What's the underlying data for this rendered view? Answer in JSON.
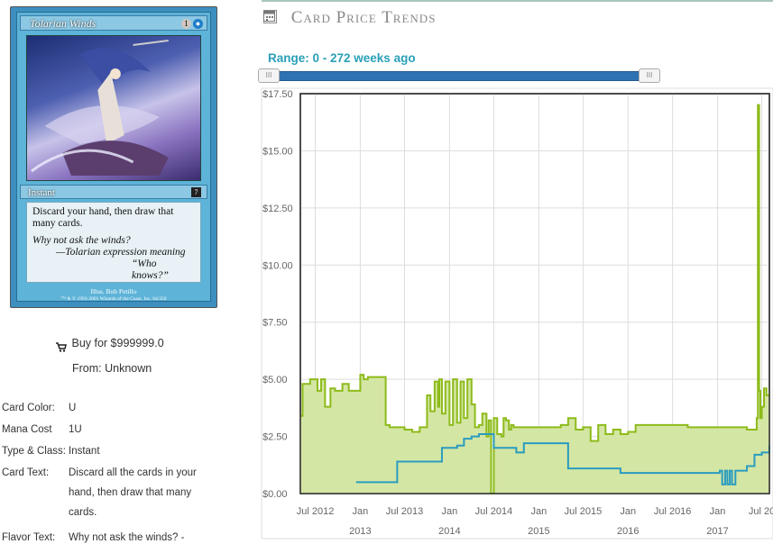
{
  "card_image": {
    "title": "Tolarian Winds",
    "mana": [
      "1",
      "●"
    ],
    "type_line": "Instant",
    "set_symbol": "7",
    "rules_text": "Discard your hand, then draw that many cards.",
    "flavor_line1": "Why not ask the winds?",
    "flavor_line2": "—Tolarian expression meaning",
    "flavor_line3": "“Who knows?”",
    "illus": "Illus. Bob Petillo",
    "copyright": "™ & © 1993-2001 Wizards of the Coast, Inc. 64/350"
  },
  "buy": {
    "label": "Buy for $999999.0",
    "icon": "cart-icon"
  },
  "from": "From: Unknown",
  "details": [
    {
      "key": "Card Color:",
      "value": "U"
    },
    {
      "key": "Mana Cost",
      "value": "1U"
    },
    {
      "key": "Type & Class:",
      "value": "Instant"
    },
    {
      "key": "Card Text:",
      "value": "Discard all the cards in your hand, then draw that many cards."
    },
    {
      "key": "Flavor Text:",
      "value": "Why not ask the winds? -"
    }
  ],
  "header": {
    "title": "Card Price Trends",
    "icon": "calendar-icon"
  },
  "range": {
    "label": "Range: 0 - 272 weeks ago",
    "handle_left": "III",
    "handle_right": "III"
  },
  "colors": {
    "green_line": "#8dbb1a",
    "green_fill": "#d4e6a4",
    "blue_line": "#2a9cc0",
    "accent": "#2aa0b8"
  },
  "chart_data": {
    "type": "area",
    "xlabel": "",
    "ylabel": "",
    "ylim": [
      0,
      17.5
    ],
    "xlim": [
      "2012-05-01",
      "2017-08-01"
    ],
    "y_ticks": [
      "$0.00",
      "$2.50",
      "$5.00",
      "$7.50",
      "$10.00",
      "$12.50",
      "$15.00",
      "$17.50"
    ],
    "x_ticks_top": [
      "Jul 2012",
      "Jan",
      "Jul 2013",
      "Jan",
      "Jul 2014",
      "Jan",
      "Jul 2015",
      "Jan",
      "Jul 2016",
      "Jan",
      "Jul 20"
    ],
    "x_ticks_bottom": [
      "2013",
      "2014",
      "2015",
      "2016",
      "2017"
    ],
    "grid": true,
    "series": [
      {
        "x": [
          "2012-05-01",
          "2012-05-10",
          "2012-06-10",
          "2012-07-10",
          "2012-07-25",
          "2012-08-10",
          "2012-09-01",
          "2012-09-20",
          "2012-10-20",
          "2012-11-15",
          "2012-12-15",
          "2013-01-01",
          "2013-01-15",
          "2013-02-01",
          "2013-03-15",
          "2013-04-15",
          "2013-05-01",
          "2013-05-15",
          "2013-06-01",
          "2013-06-20",
          "2013-07-01",
          "2013-08-01",
          "2013-09-01",
          "2013-10-01",
          "2013-10-15",
          "2013-11-01",
          "2013-11-15",
          "2013-11-20",
          "2013-12-01",
          "2013-12-15",
          "2014-01-01",
          "2014-01-15",
          "2014-02-01",
          "2014-02-15",
          "2014-03-01",
          "2014-03-15",
          "2014-04-01",
          "2014-04-15",
          "2014-05-01",
          "2014-05-15",
          "2014-06-01",
          "2014-06-10",
          "2014-06-20",
          "2014-07-01",
          "2014-07-15",
          "2014-08-01",
          "2014-08-10",
          "2014-08-20",
          "2014-09-01",
          "2014-09-10",
          "2014-09-20",
          "2014-10-01",
          "2014-11-01",
          "2014-12-01",
          "2015-01-01",
          "2015-02-01",
          "2015-03-01",
          "2015-04-01",
          "2015-05-01",
          "2015-06-01",
          "2015-07-01",
          "2015-08-01",
          "2015-09-01",
          "2015-10-01",
          "2015-11-01",
          "2015-12-01",
          "2016-01-01",
          "2016-02-01",
          "2016-03-01",
          "2016-04-01",
          "2016-05-01",
          "2016-06-01",
          "2016-07-01",
          "2016-08-01",
          "2016-09-01",
          "2016-10-01",
          "2016-11-01",
          "2016-12-01",
          "2017-01-01",
          "2017-02-01",
          "2017-03-01",
          "2017-04-01",
          "2017-05-01",
          "2017-06-01",
          "2017-06-10",
          "2017-06-15",
          "2017-06-20",
          "2017-06-25",
          "2017-07-01",
          "2017-07-10",
          "2017-07-20",
          "2017-08-01"
        ],
        "values": [
          3.4,
          4.8,
          5.0,
          4.5,
          5.0,
          3.8,
          4.6,
          4.5,
          4.8,
          4.5,
          4.5,
          5.2,
          5.0,
          5.1,
          5.1,
          3.0,
          2.9,
          2.9,
          2.9,
          2.9,
          2.8,
          2.7,
          2.9,
          4.3,
          3.6,
          4.9,
          3.8,
          5.0,
          3.5,
          4.9,
          3.0,
          5.0,
          3.1,
          4.9,
          3.3,
          5.0,
          3.9,
          2.9,
          3.0,
          3.5,
          2.5,
          3.2,
          0.0,
          3.3,
          2.6,
          2.5,
          3.3,
          3.2,
          2.8,
          3.0,
          2.9,
          2.9,
          2.9,
          2.9,
          2.9,
          2.9,
          2.9,
          3.0,
          3.3,
          2.8,
          2.9,
          2.3,
          3.0,
          2.6,
          2.8,
          2.6,
          2.7,
          3.0,
          3.0,
          3.0,
          3.0,
          3.0,
          3.0,
          3.0,
          2.9,
          2.9,
          2.9,
          2.9,
          2.9,
          2.9,
          2.9,
          2.9,
          2.8,
          2.8,
          3.3,
          17.0,
          4.5,
          3.3,
          3.8,
          4.6,
          4.3,
          4.4
        ]
      },
      {
        "x": [
          "2012-12-15",
          "2013-03-15",
          "2013-05-01",
          "2013-06-01",
          "2013-07-01",
          "2013-08-01",
          "2013-09-01",
          "2013-10-01",
          "2013-11-01",
          "2013-12-01",
          "2014-01-01",
          "2014-02-01",
          "2014-03-01",
          "2014-04-01",
          "2014-05-01",
          "2014-06-01",
          "2014-07-01",
          "2014-08-01",
          "2014-09-01",
          "2014-10-01",
          "2014-11-01",
          "2014-12-01",
          "2015-01-01",
          "2015-02-01",
          "2015-03-01",
          "2015-04-01",
          "2015-05-01",
          "2015-06-01",
          "2015-07-01",
          "2015-08-01",
          "2015-09-01",
          "2015-10-01",
          "2015-11-01",
          "2015-12-01",
          "2016-01-01",
          "2016-02-01",
          "2016-03-01",
          "2016-04-01",
          "2016-05-01",
          "2016-06-01",
          "2016-07-01",
          "2016-08-01",
          "2016-09-01",
          "2016-10-01",
          "2016-11-01",
          "2016-12-01",
          "2017-01-01",
          "2017-01-10",
          "2017-01-20",
          "2017-02-01",
          "2017-02-10",
          "2017-02-20",
          "2017-03-01",
          "2017-03-15",
          "2017-04-01",
          "2017-05-01",
          "2017-06-01",
          "2017-07-01",
          "2017-08-01"
        ],
        "values": [
          0.5,
          0.5,
          0.5,
          1.4,
          1.4,
          1.4,
          1.4,
          1.4,
          1.4,
          2.0,
          2.0,
          2.1,
          2.4,
          2.5,
          2.6,
          2.6,
          2.0,
          2.0,
          2.0,
          1.8,
          2.2,
          2.2,
          2.2,
          2.2,
          2.2,
          2.2,
          1.1,
          1.1,
          1.1,
          1.1,
          1.1,
          1.1,
          1.1,
          0.9,
          0.9,
          0.9,
          0.9,
          0.9,
          0.9,
          0.9,
          0.9,
          0.9,
          0.9,
          0.9,
          0.9,
          0.9,
          0.9,
          1.0,
          0.4,
          1.0,
          0.4,
          1.0,
          0.4,
          1.0,
          1.0,
          1.2,
          1.7,
          1.8,
          2.1
        ]
      }
    ]
  }
}
